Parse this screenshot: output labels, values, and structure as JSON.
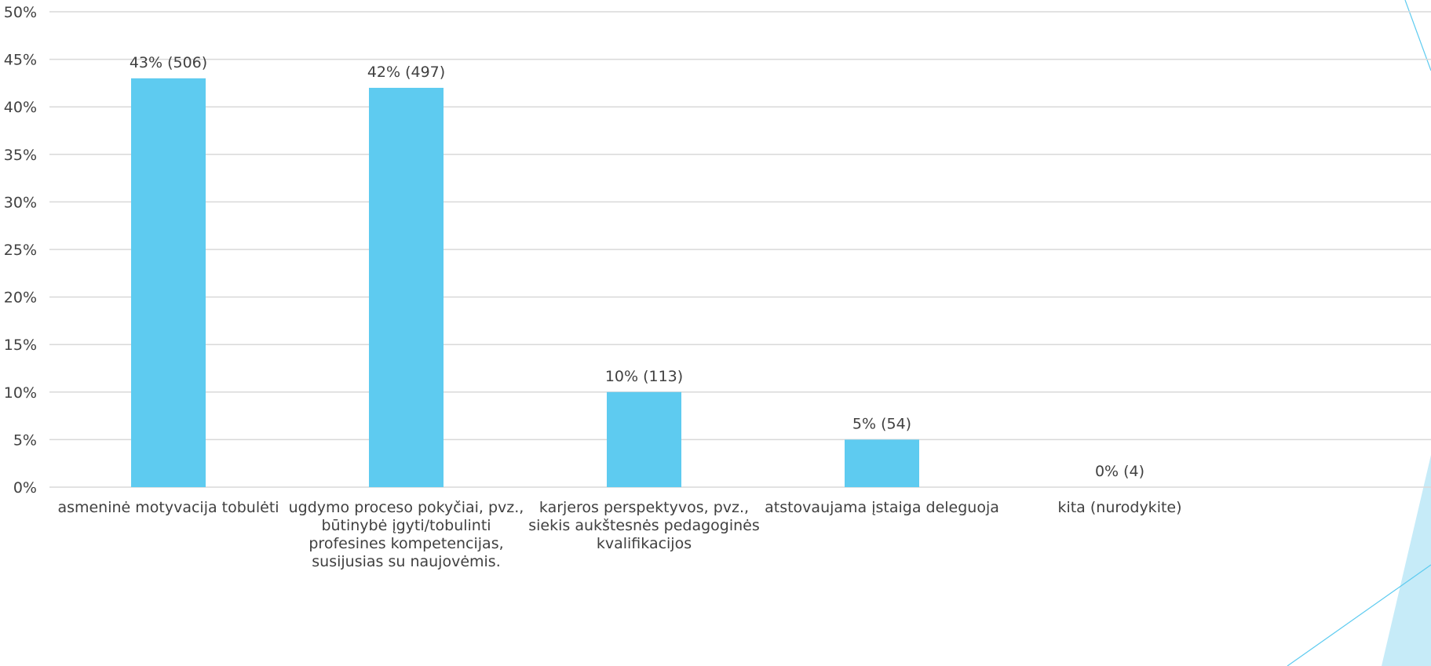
{
  "chart_data": {
    "type": "bar",
    "categories": [
      [
        "asmeninė motyvacija tobulėti"
      ],
      [
        "ugdymo proceso pokyčiai, pvz.,",
        "būtinybė įgyti/tobulinti",
        "profesines kompetencijas,",
        "susijusias su naujovėmis."
      ],
      [
        "karjeros perspektyvos, pvz.,",
        "siekis aukštesnės pedagoginės",
        "kvalifikacijos"
      ],
      [
        "atstovaujama įstaiga deleguoja"
      ],
      [
        "kita (nurodykite)"
      ]
    ],
    "values": [
      43,
      42,
      10,
      5,
      0
    ],
    "data_labels": [
      "43% (506)",
      "42% (497)",
      "10% (113)",
      "5% (54)",
      "0% (4)"
    ],
    "ylim": [
      0,
      50
    ],
    "y_ticks": [
      "0%",
      "5%",
      "10%",
      "15%",
      "20%",
      "25%",
      "30%",
      "35%",
      "40%",
      "45%",
      "50%"
    ],
    "grid": true,
    "bar_color": "#5ECBF0",
    "grid_color": "#D9D9D9",
    "text_color": "#404040",
    "decor_color": "#C6EBF8",
    "decor_line_color": "#5ECBF0"
  }
}
